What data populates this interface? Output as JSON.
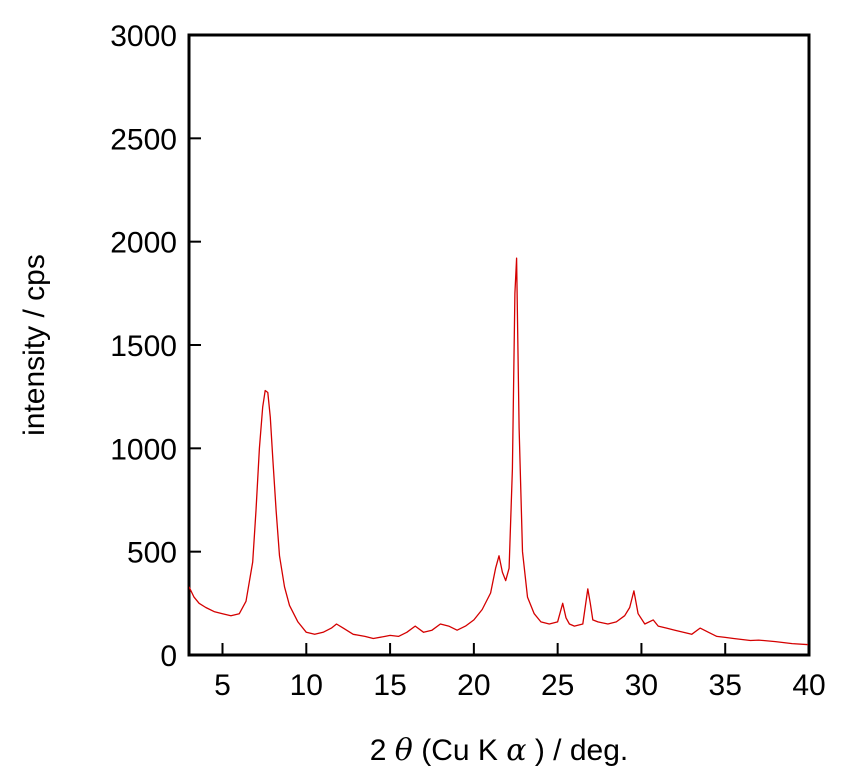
{
  "chart_data": {
    "type": "line",
    "xlabel": {
      "prefix": "2",
      "theta": "θ",
      "middle": " (Cu K",
      "alpha": "α",
      "suffix": ") / deg."
    },
    "ylabel": "intensity / cps",
    "xlim": [
      3,
      40
    ],
    "ylim": [
      0,
      3000
    ],
    "xticks": [
      5,
      10,
      15,
      20,
      25,
      30,
      35,
      40
    ],
    "yticks": [
      0,
      500,
      1000,
      1500,
      2000,
      2500,
      3000
    ],
    "grid": false,
    "series": [
      {
        "color": "#d40000",
        "x": [
          3.0,
          3.3,
          3.6,
          4.0,
          4.5,
          5.0,
          5.5,
          6.0,
          6.4,
          6.8,
          7.0,
          7.2,
          7.4,
          7.55,
          7.7,
          7.85,
          8.0,
          8.2,
          8.4,
          8.7,
          9.0,
          9.5,
          10.0,
          10.5,
          11.0,
          11.5,
          11.8,
          12.2,
          12.8,
          13.5,
          14.0,
          14.7,
          15.0,
          15.5,
          16.0,
          16.5,
          17.0,
          17.5,
          18.0,
          18.5,
          19.0,
          19.5,
          20.0,
          20.5,
          21.0,
          21.3,
          21.5,
          21.7,
          21.9,
          22.1,
          22.3,
          22.45,
          22.55,
          22.7,
          22.9,
          23.2,
          23.6,
          24.0,
          24.5,
          25.0,
          25.3,
          25.5,
          25.7,
          26.0,
          26.5,
          26.8,
          26.95,
          27.1,
          27.4,
          28.0,
          28.5,
          29.0,
          29.3,
          29.55,
          29.8,
          30.2,
          30.7,
          31.0,
          31.5,
          32.0,
          32.5,
          33.0,
          33.5,
          34.0,
          34.5,
          35.0,
          35.5,
          36.0,
          36.5,
          37.0,
          38.0,
          39.0,
          40.0
        ],
        "y": [
          330,
          280,
          250,
          230,
          210,
          200,
          190,
          200,
          260,
          450,
          700,
          1000,
          1200,
          1280,
          1270,
          1150,
          950,
          700,
          480,
          330,
          240,
          160,
          110,
          100,
          110,
          130,
          150,
          130,
          100,
          90,
          80,
          90,
          95,
          90,
          110,
          140,
          110,
          120,
          150,
          140,
          120,
          140,
          170,
          220,
          300,
          420,
          480,
          400,
          360,
          420,
          900,
          1750,
          1920,
          1100,
          500,
          280,
          200,
          160,
          150,
          160,
          250,
          180,
          150,
          140,
          150,
          320,
          250,
          170,
          160,
          150,
          160,
          190,
          230,
          310,
          200,
          150,
          170,
          140,
          130,
          120,
          110,
          100,
          130,
          110,
          90,
          85,
          80,
          75,
          70,
          72,
          65,
          55,
          50
        ]
      }
    ]
  }
}
